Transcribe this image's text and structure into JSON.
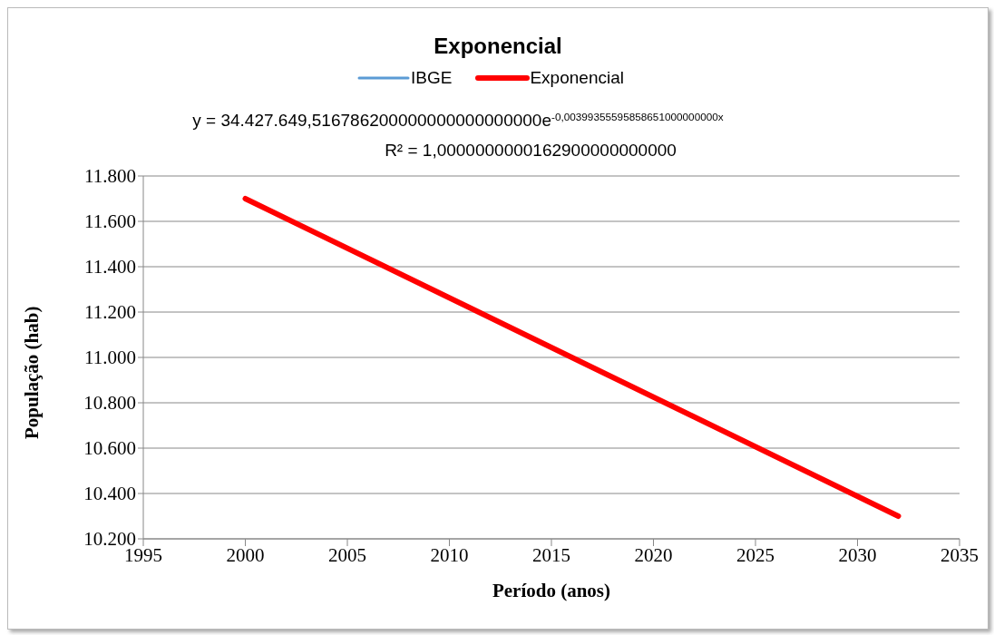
{
  "chart_data": {
    "type": "line",
    "title": "Exponencial",
    "xlabel": "Período (anos)",
    "ylabel": "População (hab)",
    "x": [
      2000,
      2016,
      2032
    ],
    "series": [
      {
        "name": "IBGE",
        "color": "#5b9bd5",
        "values": [
          null,
          null,
          null
        ]
      },
      {
        "name": "Exponencial",
        "color": "#ff0000",
        "values": [
          11700,
          11000,
          10300
        ]
      }
    ],
    "xlim": [
      1995,
      2035
    ],
    "xticks": [
      1995,
      2000,
      2005,
      2010,
      2015,
      2020,
      2025,
      2030,
      2035
    ],
    "ylim": [
      10200,
      11800
    ],
    "yticks": [
      {
        "value": 10200,
        "label": "10.200"
      },
      {
        "value": 10400,
        "label": "10.400"
      },
      {
        "value": 10600,
        "label": "10.600"
      },
      {
        "value": 10800,
        "label": "10.800"
      },
      {
        "value": 11000,
        "label": "11.000"
      },
      {
        "value": 11200,
        "label": "11.200"
      },
      {
        "value": 11400,
        "label": "11.400"
      },
      {
        "value": 11600,
        "label": "11.600"
      },
      {
        "value": 11800,
        "label": "11.800"
      }
    ],
    "grid": "y",
    "legend": "top",
    "marker": "none",
    "line_style": "solid",
    "annotations": [
      "y = 34.427.649,516786200000000000000000e$^{-0,00399355595858651000000000x}$",
      "R² = 1,0000000000162900000000000"
    ]
  }
}
